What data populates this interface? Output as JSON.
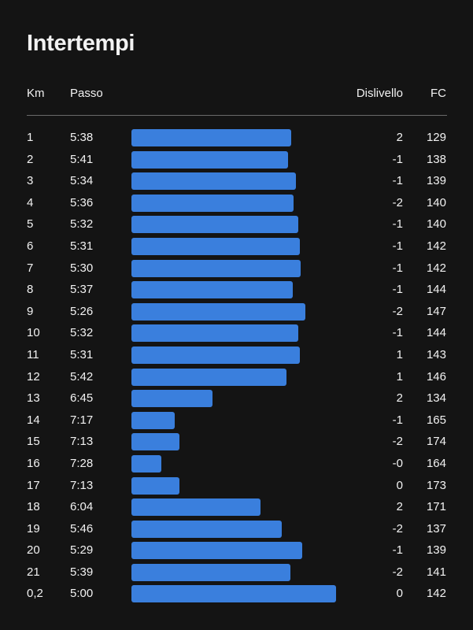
{
  "title": "Intertempi",
  "columns": {
    "km": "Km",
    "pace": "Passo",
    "elevation": "Dislivello",
    "hr": "FC"
  },
  "splits": [
    {
      "km": "1",
      "pace": "5:38",
      "pace_seconds": 338,
      "elevation": "2",
      "hr": "129"
    },
    {
      "km": "2",
      "pace": "5:41",
      "pace_seconds": 341,
      "elevation": "-1",
      "hr": "138"
    },
    {
      "km": "3",
      "pace": "5:34",
      "pace_seconds": 334,
      "elevation": "-1",
      "hr": "139"
    },
    {
      "km": "4",
      "pace": "5:36",
      "pace_seconds": 336,
      "elevation": "-2",
      "hr": "140"
    },
    {
      "km": "5",
      "pace": "5:32",
      "pace_seconds": 332,
      "elevation": "-1",
      "hr": "140"
    },
    {
      "km": "6",
      "pace": "5:31",
      "pace_seconds": 331,
      "elevation": "-1",
      "hr": "142"
    },
    {
      "km": "7",
      "pace": "5:30",
      "pace_seconds": 330,
      "elevation": "-1",
      "hr": "142"
    },
    {
      "km": "8",
      "pace": "5:37",
      "pace_seconds": 337,
      "elevation": "-1",
      "hr": "144"
    },
    {
      "km": "9",
      "pace": "5:26",
      "pace_seconds": 326,
      "elevation": "-2",
      "hr": "147"
    },
    {
      "km": "10",
      "pace": "5:32",
      "pace_seconds": 332,
      "elevation": "-1",
      "hr": "144"
    },
    {
      "km": "11",
      "pace": "5:31",
      "pace_seconds": 331,
      "elevation": "1",
      "hr": "143"
    },
    {
      "km": "12",
      "pace": "5:42",
      "pace_seconds": 342,
      "elevation": "1",
      "hr": "146"
    },
    {
      "km": "13",
      "pace": "6:45",
      "pace_seconds": 405,
      "elevation": "2",
      "hr": "134"
    },
    {
      "km": "14",
      "pace": "7:17",
      "pace_seconds": 437,
      "elevation": "-1",
      "hr": "165"
    },
    {
      "km": "15",
      "pace": "7:13",
      "pace_seconds": 433,
      "elevation": "-2",
      "hr": "174"
    },
    {
      "km": "16",
      "pace": "7:28",
      "pace_seconds": 448,
      "elevation": "-0",
      "hr": "164"
    },
    {
      "km": "17",
      "pace": "7:13",
      "pace_seconds": 433,
      "elevation": "0",
      "hr": "173"
    },
    {
      "km": "18",
      "pace": "6:04",
      "pace_seconds": 364,
      "elevation": "2",
      "hr": "171"
    },
    {
      "km": "19",
      "pace": "5:46",
      "pace_seconds": 346,
      "elevation": "-2",
      "hr": "137"
    },
    {
      "km": "20",
      "pace": "5:29",
      "pace_seconds": 329,
      "elevation": "-1",
      "hr": "139"
    },
    {
      "km": "21",
      "pace": "5:39",
      "pace_seconds": 339,
      "elevation": "-2",
      "hr": "141"
    },
    {
      "km": "0,2",
      "pace": "5:00",
      "pace_seconds": 300,
      "elevation": "0",
      "hr": "142"
    }
  ],
  "colors": {
    "background": "#141414",
    "text": "#f2f2f2",
    "bar": "#3a7fdd",
    "divider": "#6a6a6a"
  }
}
